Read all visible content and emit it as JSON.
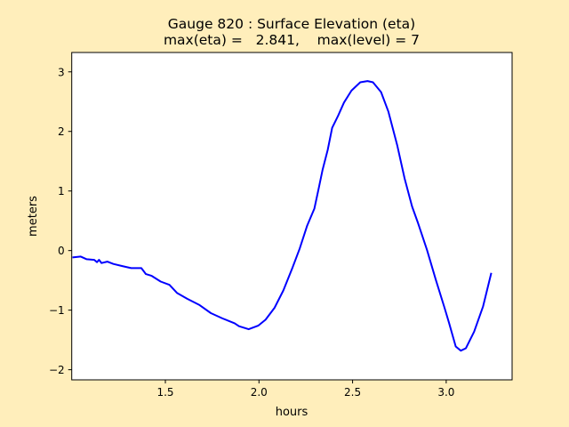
{
  "colors": {
    "background": "#ffeebb",
    "plot_background": "#ffffff",
    "series": "#0000ff"
  },
  "chart_data": {
    "type": "line",
    "title": "Gauge 820 : Surface Elevation (eta)",
    "subtitle": "max(eta) =   2.841,    max(level) = 7",
    "xlabel": "hours",
    "ylabel": "meters",
    "xlim": [
      1.0,
      3.352
    ],
    "ylim": [
      -2.17,
      3.325
    ],
    "xticks": [
      1.5,
      2.0,
      2.5,
      3.0
    ],
    "xtick_labels": [
      "1.5",
      "2.0",
      "2.5",
      "3.0"
    ],
    "yticks": [
      -2,
      -1,
      0,
      1,
      2,
      3
    ],
    "ytick_labels": [
      "−2",
      "−1",
      "0",
      "1",
      "2",
      "3"
    ],
    "grid": false,
    "series": [
      {
        "color": "#0000ff",
        "x": [
          1.004,
          1.048,
          1.08,
          1.12,
          1.135,
          1.146,
          1.159,
          1.19,
          1.222,
          1.27,
          1.317,
          1.372,
          1.396,
          1.427,
          1.475,
          1.522,
          1.562,
          1.617,
          1.68,
          1.743,
          1.806,
          1.87,
          1.893,
          1.945,
          1.996,
          2.035,
          2.083,
          2.13,
          2.178,
          2.217,
          2.257,
          2.296,
          2.32,
          2.34,
          2.367,
          2.391,
          2.422,
          2.454,
          2.494,
          2.541,
          2.58,
          2.609,
          2.652,
          2.691,
          2.739,
          2.778,
          2.818,
          2.849,
          2.897,
          2.944,
          2.991,
          3.015,
          3.051,
          3.078,
          3.105,
          3.149,
          3.197,
          3.241
        ],
        "y": [
          -0.115,
          -0.1,
          -0.145,
          -0.155,
          -0.195,
          -0.155,
          -0.21,
          -0.185,
          -0.225,
          -0.26,
          -0.295,
          -0.295,
          -0.395,
          -0.425,
          -0.52,
          -0.575,
          -0.71,
          -0.81,
          -0.91,
          -1.05,
          -1.14,
          -1.22,
          -1.27,
          -1.32,
          -1.26,
          -1.16,
          -0.96,
          -0.67,
          -0.295,
          0.03,
          0.415,
          0.705,
          1.06,
          1.36,
          1.69,
          2.06,
          2.26,
          2.485,
          2.685,
          2.825,
          2.845,
          2.825,
          2.66,
          2.335,
          1.76,
          1.21,
          0.74,
          0.465,
          0.015,
          -0.485,
          -0.96,
          -1.21,
          -1.61,
          -1.68,
          -1.64,
          -1.36,
          -0.935,
          -0.375
        ]
      }
    ]
  }
}
